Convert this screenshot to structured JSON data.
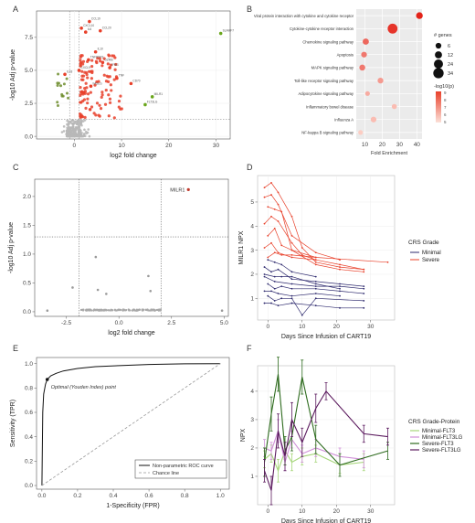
{
  "chart_data": [
    {
      "panel": "A",
      "type": "scatter",
      "xlabel": "log2 fold change",
      "ylabel": "-log10 Adj p-value",
      "xticks": [
        "0",
        "10",
        "20",
        "30"
      ],
      "yticks": [
        "0.0",
        "2.5",
        "5.0",
        "7.5"
      ],
      "xlim": [
        -8,
        33
      ],
      "ylim": [
        -0.2,
        9.5
      ],
      "highlight_color": "#e8402a",
      "point_color": "#b8b8b8",
      "labelled_points": [
        {
          "label": "CCL19",
          "x": 3.2,
          "y": 8.7
        },
        {
          "label": "CXCL10",
          "x": 1.5,
          "y": 8.2
        },
        {
          "label": "IL6",
          "x": 2.4,
          "y": 7.9
        },
        {
          "label": "CCL20",
          "x": 5.5,
          "y": 8.0
        },
        {
          "label": "SLAMF7",
          "x": 31.0,
          "y": 7.8
        },
        {
          "label": "IL10",
          "x": 4.5,
          "y": 6.4
        },
        {
          "label": "TNFRSF9",
          "x": 3.0,
          "y": 5.8
        },
        {
          "label": "GZMB",
          "x": 6.0,
          "y": 5.6
        },
        {
          "label": "IFNG",
          "x": 7.5,
          "y": 5.2
        },
        {
          "label": "CXCL9",
          "x": 1.0,
          "y": 5.0
        },
        {
          "label": "IL18",
          "x": -2.0,
          "y": 4.7
        },
        {
          "label": "TNF",
          "x": 9.0,
          "y": 4.4
        },
        {
          "label": "CD70",
          "x": 12.0,
          "y": 4.0
        },
        {
          "label": "FASLG",
          "x": 3.5,
          "y": 3.8
        },
        {
          "label": "MILR1",
          "x": 16.5,
          "y": 3.0
        },
        {
          "label": "FLT3LG",
          "x": 15.0,
          "y": 2.4
        }
      ],
      "threshold_y": 1.3,
      "threshold_x": [
        -1,
        1
      ]
    },
    {
      "panel": "B",
      "type": "scatter",
      "xlabel": "Fold Enrichment",
      "xticks": [
        "10",
        "20",
        "30",
        "40"
      ],
      "xlim": [
        5,
        43
      ],
      "categories": [
        "Viral protein interaction with cytokine and cytokine receptor",
        "Cytokine-cytokine receptor interaction",
        "Chemokine signaling pathway",
        "Apoptosis",
        "MAPK signaling pathway",
        "Toll-like receptor signaling pathway",
        "Adipocytokine signaling pathway",
        "Inflammatory bowel disease",
        "Influenza A",
        "NF-kappa B signaling pathway"
      ],
      "fold_enrichment": [
        41.5,
        26.0,
        10.5,
        9.5,
        8.5,
        19.0,
        11.5,
        27.0,
        15.0,
        7.5
      ],
      "n_genes": [
        10,
        30,
        8,
        6,
        7,
        6,
        3,
        4,
        6,
        3
      ],
      "neg_log10_p": [
        9,
        8.5,
        7,
        6.5,
        6.5,
        5.5,
        5,
        4.5,
        4.5,
        4
      ],
      "legend_size_title": "# genes",
      "legend_size_values": [
        "6",
        "12",
        "24",
        "34"
      ],
      "legend_color_title": "-log10(p)",
      "legend_color_ticks": [
        "9",
        "8",
        "7",
        "6",
        "5"
      ]
    },
    {
      "panel": "C",
      "type": "scatter",
      "xlabel": "log2 fold change",
      "ylabel": "-log10 Adj p-value",
      "xticks": [
        "-2.5",
        "0.0",
        "2.5",
        "5.0"
      ],
      "yticks": [
        "0.0",
        "0.5",
        "1.0",
        "1.5",
        "2.0"
      ],
      "xlim": [
        -4.0,
        5.2
      ],
      "ylim": [
        -0.08,
        2.3
      ],
      "labelled_points": [
        {
          "label": "MILR1",
          "x": 3.3,
          "y": 2.12
        }
      ],
      "points": [
        {
          "x": -2.2,
          "y": 0.42
        },
        {
          "x": -1.1,
          "y": 0.95
        },
        {
          "x": -1.0,
          "y": 0.38
        },
        {
          "x": -0.6,
          "y": 0.31
        },
        {
          "x": 1.4,
          "y": 0.62
        },
        {
          "x": 1.5,
          "y": 0.36
        },
        {
          "x": 4.9,
          "y": 0.02
        },
        {
          "x": -3.4,
          "y": 0.02
        }
      ],
      "threshold_y": 1.3,
      "threshold_x": [
        -1.9,
        2.0
      ]
    },
    {
      "panel": "D",
      "type": "line",
      "xlabel": "Days Since Infusion of CART19",
      "ylabel": "MILR1 NPX",
      "xticks": [
        "0",
        "10",
        "20",
        "30"
      ],
      "yticks": [
        "1",
        "2",
        "3",
        "4",
        "5"
      ],
      "xlim": [
        -3,
        37
      ],
      "ylim": [
        0.1,
        6.1
      ],
      "legend_title": "CRS Grade",
      "series": [
        {
          "name": "Minimal",
          "color": "#2e2a6e",
          "lines": [
            [
              [
                -1,
                2.3
              ],
              [
                1,
                2.1
              ],
              [
                3,
                2.2
              ],
              [
                7,
                1.8
              ],
              [
                14,
                1.7
              ],
              [
                21,
                1.6
              ],
              [
                28,
                1.5
              ]
            ],
            [
              [
                -1,
                2.0
              ],
              [
                2,
                1.9
              ],
              [
                4,
                1.9
              ],
              [
                7,
                1.9
              ],
              [
                14,
                1.6
              ],
              [
                21,
                1.4
              ]
            ],
            [
              [
                0,
                1.6
              ],
              [
                2,
                1.4
              ],
              [
                4,
                1.5
              ],
              [
                7,
                1.4
              ],
              [
                14,
                1.4
              ],
              [
                21,
                1.3
              ],
              [
                28,
                1.2
              ]
            ],
            [
              [
                -1,
                1.3
              ],
              [
                1,
                1.3
              ],
              [
                3,
                1.2
              ],
              [
                7,
                1.1
              ],
              [
                14,
                1.2
              ],
              [
                21,
                1.1
              ]
            ],
            [
              [
                0,
                1.1
              ],
              [
                2,
                0.9
              ],
              [
                4,
                1.0
              ],
              [
                7,
                1.0
              ],
              [
                10,
                0.3
              ],
              [
                14,
                1.0
              ],
              [
                28,
                0.9
              ]
            ],
            [
              [
                -1,
                0.8
              ],
              [
                1,
                0.8
              ],
              [
                3,
                0.7
              ],
              [
                7,
                0.8
              ],
              [
                14,
                0.7
              ],
              [
                21,
                0.6
              ],
              [
                28,
                0.6
              ]
            ],
            [
              [
                0,
                2.6
              ],
              [
                2,
                2.5
              ],
              [
                4,
                2.4
              ],
              [
                7,
                2.1
              ],
              [
                14,
                1.9
              ]
            ],
            [
              [
                -1,
                1.9
              ],
              [
                2,
                1.7
              ],
              [
                7,
                1.6
              ],
              [
                14,
                1.5
              ],
              [
                21,
                1.5
              ],
              [
                28,
                1.4
              ]
            ]
          ]
        },
        {
          "name": "Severe",
          "color": "#e8402a",
          "lines": [
            [
              [
                -1,
                5.6
              ],
              [
                1,
                5.8
              ],
              [
                3,
                5.4
              ],
              [
                7,
                4.4
              ],
              [
                10,
                3.1
              ],
              [
                14,
                2.5
              ],
              [
                21,
                2.3
              ],
              [
                28,
                2.2
              ]
            ],
            [
              [
                -1,
                5.2
              ],
              [
                1,
                5.3
              ],
              [
                3,
                4.9
              ],
              [
                7,
                3.6
              ],
              [
                14,
                2.9
              ],
              [
                21,
                2.6
              ]
            ],
            [
              [
                0,
                4.8
              ],
              [
                2,
                4.7
              ],
              [
                4,
                4.6
              ],
              [
                7,
                3.0
              ],
              [
                14,
                2.4
              ],
              [
                21,
                2.2
              ],
              [
                28,
                2.1
              ]
            ],
            [
              [
                -1,
                4.1
              ],
              [
                1,
                4.4
              ],
              [
                3,
                4.2
              ],
              [
                7,
                3.3
              ],
              [
                10,
                2.8
              ],
              [
                14,
                2.6
              ]
            ],
            [
              [
                0,
                3.6
              ],
              [
                2,
                3.9
              ],
              [
                4,
                3.2
              ],
              [
                7,
                3.0
              ],
              [
                14,
                2.7
              ],
              [
                35,
                2.5
              ]
            ],
            [
              [
                -1,
                3.1
              ],
              [
                1,
                3.3
              ],
              [
                3,
                2.9
              ],
              [
                7,
                2.7
              ],
              [
                14,
                2.6
              ],
              [
                21,
                2.4
              ],
              [
                28,
                2.2
              ]
            ],
            [
              [
                0,
                2.7
              ],
              [
                2,
                2.9
              ],
              [
                4,
                2.8
              ],
              [
                7,
                2.8
              ],
              [
                14,
                2.7
              ]
            ]
          ]
        }
      ]
    },
    {
      "panel": "E",
      "type": "line",
      "xlabel": "1-Specificity (FPR)",
      "ylabel": "Sensitivity (TPR)",
      "xticks": [
        "0.0",
        "0.2",
        "0.4",
        "0.6",
        "0.8",
        "1.0"
      ],
      "yticks": [
        "0.0",
        "0.2",
        "0.4",
        "0.6",
        "0.8",
        "1.0"
      ],
      "xlim": [
        -0.03,
        1.05
      ],
      "ylim": [
        -0.03,
        1.05
      ],
      "annotation": "Optimal (Youden Index) point",
      "optimal_point": {
        "x": 0.03,
        "y": 0.87
      },
      "series": [
        {
          "name": "Non-parametric ROC curve",
          "x": [
            0,
            0.005,
            0.01,
            0.02,
            0.03,
            0.05,
            0.08,
            0.12,
            0.2,
            0.3,
            0.45,
            0.6,
            0.8,
            1.0
          ],
          "y": [
            0,
            0.6,
            0.75,
            0.83,
            0.87,
            0.9,
            0.92,
            0.94,
            0.96,
            0.975,
            0.985,
            0.993,
            0.998,
            1.0
          ]
        },
        {
          "name": "Chance line",
          "x": [
            0,
            1
          ],
          "y": [
            0,
            1
          ]
        }
      ]
    },
    {
      "panel": "F",
      "type": "line",
      "xlabel": "Days Since Infusion of CART19",
      "ylabel": "NPX",
      "xticks": [
        "0",
        "10",
        "20",
        "30"
      ],
      "yticks": [
        "1",
        "2",
        "3",
        "4"
      ],
      "xlim": [
        -3,
        37
      ],
      "ylim": [
        0.0,
        4.9
      ],
      "legend_title": "CRS Grade-Protein",
      "series": [
        {
          "name": "Minimal-FLT3",
          "color": "#a6d67a",
          "x": [
            -1,
            1,
            3,
            5,
            7,
            10,
            14,
            21,
            28
          ],
          "y": [
            1.6,
            1.8,
            1.2,
            1.9,
            1.5,
            1.7,
            1.8,
            1.4,
            1.5
          ],
          "err": [
            0.3,
            0.3,
            0.4,
            0.3,
            0.3,
            0.3,
            0.3,
            0.3,
            0.3
          ]
        },
        {
          "name": "Minimal-FLT3LG",
          "color": "#d090d8",
          "x": [
            -1,
            1,
            3,
            5,
            7,
            10,
            14,
            21,
            28
          ],
          "y": [
            2.0,
            1.9,
            2.6,
            1.5,
            2.3,
            1.8,
            2.0,
            1.7,
            1.6
          ],
          "err": [
            0.3,
            0.3,
            0.4,
            0.3,
            0.3,
            0.3,
            0.3,
            0.3,
            0.3
          ]
        },
        {
          "name": "Severe-FLT3",
          "color": "#2e6b1e",
          "x": [
            -1,
            1,
            3,
            5,
            7,
            10,
            14,
            21,
            35
          ],
          "y": [
            1.5,
            3.2,
            4.6,
            1.9,
            2.4,
            4.5,
            2.3,
            1.4,
            1.9
          ],
          "err": [
            0.5,
            0.6,
            0.6,
            0.5,
            0.5,
            0.6,
            0.5,
            0.4,
            0.3
          ]
        },
        {
          "name": "Severe-FLT3LG",
          "color": "#5b1a5e",
          "x": [
            -1,
            1,
            3,
            5,
            7,
            10,
            14,
            17,
            28,
            35
          ],
          "y": [
            1.2,
            0.5,
            2.6,
            1.7,
            3.0,
            2.2,
            3.4,
            4.0,
            2.5,
            2.4
          ],
          "err": [
            0.4,
            0.5,
            0.6,
            0.5,
            0.6,
            0.5,
            0.5,
            0.3,
            0.3,
            0.3
          ]
        }
      ]
    }
  ],
  "panel_letters": {
    "a": "A",
    "b": "B",
    "c": "C",
    "d": "D",
    "e": "E",
    "f": "F"
  }
}
